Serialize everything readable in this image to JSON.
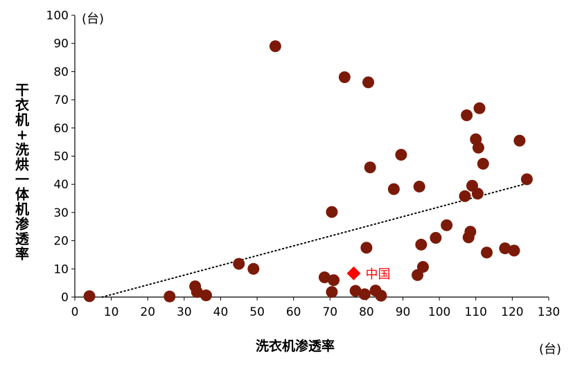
{
  "chart_data": {
    "type": "scatter",
    "xlabel": "洗衣机渗透率",
    "ylabel": "干衣机+洗烘一体机渗透率",
    "x_unit": "(台)",
    "y_unit": "(台)",
    "xlim": [
      0,
      130
    ],
    "ylim": [
      0,
      100
    ],
    "x_ticks": [
      0,
      10,
      20,
      30,
      40,
      50,
      60,
      70,
      80,
      90,
      100,
      110,
      120,
      130
    ],
    "y_ticks": [
      0,
      10,
      20,
      30,
      40,
      50,
      60,
      70,
      80,
      90,
      100
    ],
    "grid": false,
    "point_color": "#7b1a08",
    "highlight_color": "#ff0000",
    "series": [
      {
        "points": [
          [
            4,
            0.3
          ],
          [
            26,
            0.2
          ],
          [
            33,
            3.8
          ],
          [
            33.5,
            1.8
          ],
          [
            36,
            0.6
          ],
          [
            45,
            11.8
          ],
          [
            49,
            10
          ],
          [
            55,
            89
          ],
          [
            68.5,
            7
          ],
          [
            70.5,
            1.8
          ],
          [
            71,
            6
          ],
          [
            70.5,
            30.2
          ],
          [
            74,
            78
          ],
          [
            77,
            2.2
          ],
          [
            79.5,
            1
          ],
          [
            80,
            17.5
          ],
          [
            80.5,
            76.2
          ],
          [
            81,
            46
          ],
          [
            82.5,
            2.3
          ],
          [
            84,
            0.5
          ],
          [
            87.5,
            38.3
          ],
          [
            89.5,
            50.5
          ],
          [
            94,
            7.8
          ],
          [
            94.5,
            39.2
          ],
          [
            95,
            18.6
          ],
          [
            95.5,
            10.7
          ],
          [
            99,
            21
          ],
          [
            102,
            25.5
          ],
          [
            107,
            35.8
          ],
          [
            107.5,
            64.5
          ],
          [
            108,
            21.2
          ],
          [
            108.5,
            23.2
          ],
          [
            109,
            39.5
          ],
          [
            110,
            56
          ],
          [
            110.5,
            36.7
          ],
          [
            110.7,
            53
          ],
          [
            111,
            67
          ],
          [
            112,
            47.3
          ],
          [
            113,
            15.8
          ],
          [
            118,
            17.3
          ],
          [
            120.5,
            16.5
          ],
          [
            122,
            55.5
          ],
          [
            124,
            41.8
          ]
        ]
      }
    ],
    "highlight": {
      "label": "中国",
      "x": 76.5,
      "y": 8.4
    },
    "trendline": {
      "style": "dotted",
      "x0": 7.5,
      "y0": 0,
      "x1": 124,
      "y1": 40.3
    }
  }
}
